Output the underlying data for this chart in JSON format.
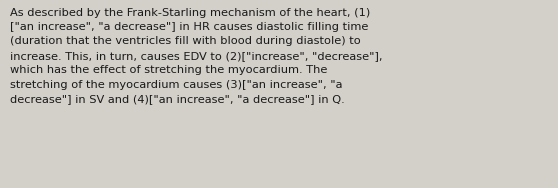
{
  "text": "As described by the Frank-Starling mechanism of the heart, (1)\n[\"an increase\", \"a decrease\"] in HR causes diastolic filling time\n(duration that the ventricles fill with blood during diastole) to\nincrease. This, in turn, causes EDV to (2)[\"increase\", \"decrease\"],\nwhich has the effect of stretching the myocardium. The\nstretching of the myocardium causes (3)[\"an increase\", \"a\ndecrease\"] in SV and (4)[\"an increase\", \"a decrease\"] in Q.",
  "background_color": "#d3d0ca",
  "text_color": "#1a1a1a",
  "font_size": 8.2,
  "fig_width": 5.58,
  "fig_height": 1.88,
  "dpi": 100,
  "linespacing": 1.55
}
